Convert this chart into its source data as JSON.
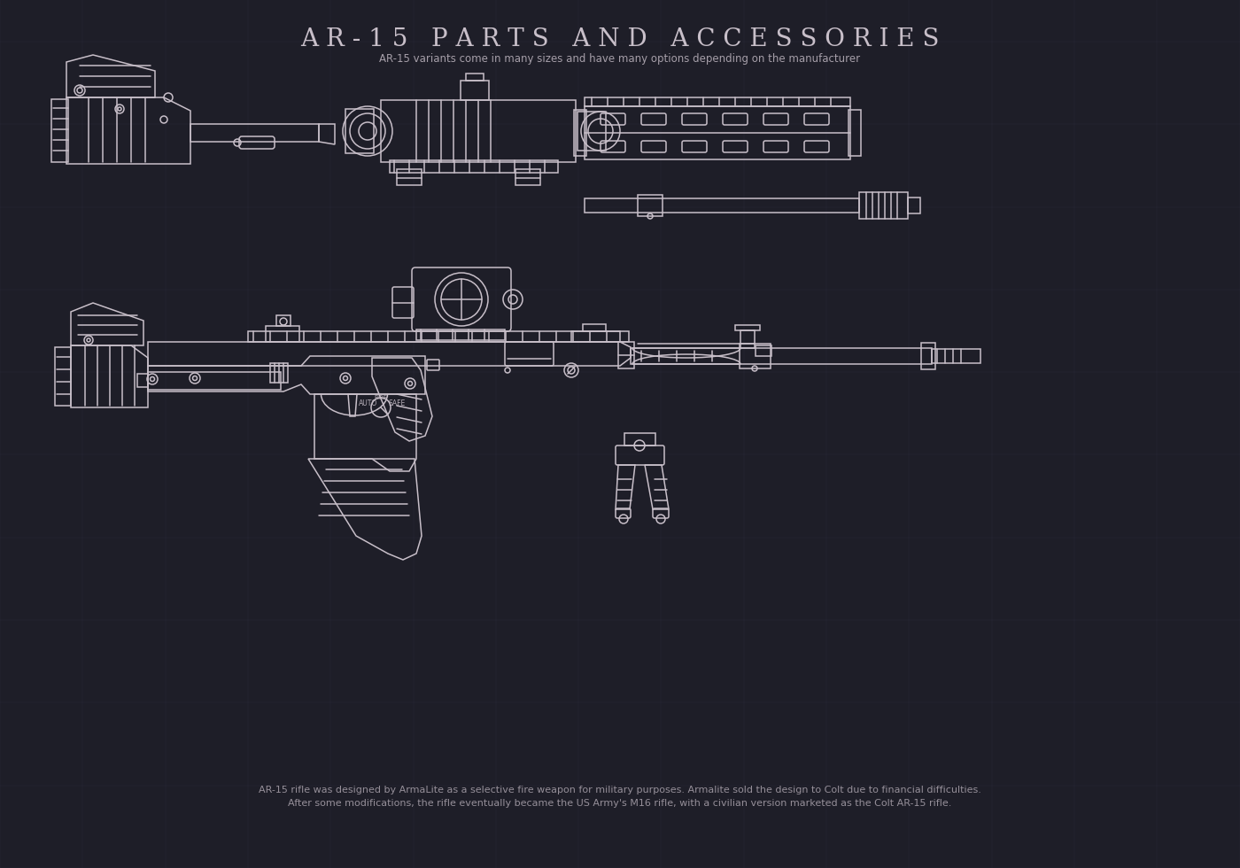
{
  "bg_color": "#1e1e28",
  "grid_color": "#2a2a38",
  "line_color": "#c8bfc9",
  "title": "A R - 1 5   P A R T S   A N D   A C C E S S O R I E S",
  "subtitle": "AR-15 variants come in many sizes and have many options depending on the manufacturer",
  "footer_line1": "AR-15 rifle was designed by ArmaLite as a selective fire weapon for military purposes. Armalite sold the design to Colt due to financial difficulties.",
  "footer_line2": "After some modifications, the rifle eventually became the US Army's M16 rifle, with a civilian version marketed as the Colt AR-15 rifle.",
  "title_fontsize": 20,
  "subtitle_fontsize": 8.5,
  "footer_fontsize": 8,
  "lw": 1.1
}
